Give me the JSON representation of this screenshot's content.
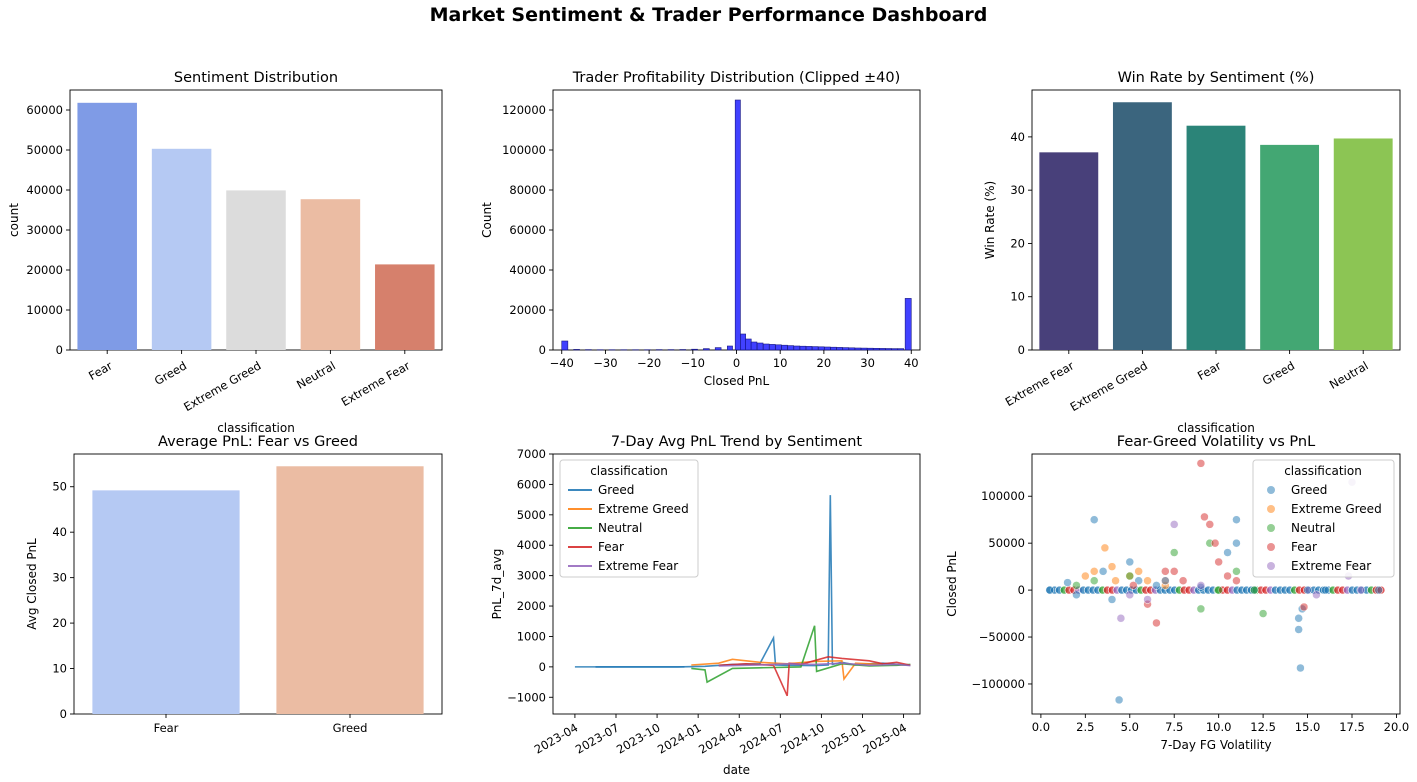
{
  "suptitle": "Market Sentiment & Trader Performance Dashboard",
  "colors": {
    "fear": "#7f9be6",
    "greed": "#b5c9f3",
    "extreme_greed": "#dcdcdc",
    "neutral": "#ebbca3",
    "extreme_fear": "#d6806c",
    "hist": "#2020ff",
    "viridis": [
      "#48407a",
      "#3b657e",
      "#2b8478",
      "#43a773",
      "#8cc554"
    ],
    "line_greed": "#1f77b4",
    "line_extreme_greed": "#ff7f0e",
    "line_neutral": "#2ca02c",
    "line_fear": "#d62728",
    "line_extreme_fear": "#9467bd"
  },
  "chart_data": [
    {
      "type": "bar",
      "title": "Sentiment Distribution",
      "xlabel": "classification",
      "ylabel": "count",
      "categories": [
        "Fear",
        "Greed",
        "Extreme Greed",
        "Neutral",
        "Extreme Fear"
      ],
      "values": [
        61800,
        50300,
        39900,
        37700,
        21400
      ],
      "ylim": [
        0,
        65000
      ],
      "yticks": [
        "0",
        "10000",
        "20000",
        "30000",
        "40000",
        "50000",
        "60000"
      ],
      "ytick_values": [
        0,
        10000,
        20000,
        30000,
        40000,
        50000,
        60000
      ],
      "grid": false,
      "xtick_rotation": 30
    },
    {
      "type": "bar",
      "title": "Trader Profitability Distribution (Clipped ±40)",
      "xlabel": "Closed PnL",
      "ylabel": "Count",
      "bin_centers": [
        -39.3,
        -36.6,
        -33.9,
        -31.2,
        -28.5,
        -25.8,
        -23.1,
        -20.4,
        -17.7,
        -15.0,
        -12.3,
        -9.6,
        -6.9,
        -4.2,
        -1.5,
        0.3,
        1.5,
        2.7,
        4.0,
        5.4,
        6.8,
        8.2,
        9.6,
        11.0,
        12.4,
        13.8,
        15.2,
        16.6,
        18.0,
        19.4,
        20.8,
        22.2,
        23.6,
        25.0,
        26.4,
        27.8,
        29.2,
        30.6,
        32.0,
        33.4,
        34.8,
        36.2,
        37.6,
        39.3
      ],
      "values": [
        4500,
        300,
        200,
        150,
        150,
        150,
        150,
        150,
        200,
        200,
        250,
        400,
        700,
        1200,
        2000,
        125000,
        8000,
        5500,
        4000,
        3500,
        3000,
        2800,
        2600,
        2400,
        2200,
        2000,
        1900,
        1800,
        1700,
        1600,
        1500,
        1400,
        1300,
        1200,
        1100,
        1000,
        950,
        900,
        850,
        800,
        750,
        700,
        700,
        25800
      ],
      "xlim": [
        -42,
        42
      ],
      "ylim": [
        0,
        130000
      ],
      "xticks": [
        "−40",
        "−30",
        "−20",
        "−10",
        "0",
        "10",
        "20",
        "30",
        "40"
      ],
      "xtick_values": [
        -40,
        -30,
        -20,
        -10,
        0,
        10,
        20,
        30,
        40
      ],
      "yticks": [
        "0",
        "20000",
        "40000",
        "60000",
        "80000",
        "100000",
        "120000"
      ],
      "ytick_values": [
        0,
        20000,
        40000,
        60000,
        80000,
        100000,
        120000
      ],
      "grid": false
    },
    {
      "type": "bar",
      "title": "Win Rate by Sentiment (%)",
      "xlabel": "classification",
      "ylabel": "Win Rate (%)",
      "categories": [
        "Extreme Fear",
        "Extreme Greed",
        "Fear",
        "Greed",
        "Neutral"
      ],
      "values": [
        37.1,
        46.5,
        42.1,
        38.5,
        39.7
      ],
      "ylim": [
        0,
        48.8
      ],
      "yticks": [
        "0",
        "10",
        "20",
        "30",
        "40"
      ],
      "ytick_values": [
        0,
        10,
        20,
        30,
        40
      ],
      "grid": false,
      "xtick_rotation": 30
    },
    {
      "type": "bar",
      "title": "Average PnL: Fear vs Greed",
      "xlabel": "",
      "ylabel": "Avg Closed PnL",
      "categories": [
        "Fear",
        "Greed"
      ],
      "values": [
        49.2,
        54.5
      ],
      "ylim": [
        0,
        57.2
      ],
      "yticks": [
        "0",
        "10",
        "20",
        "30",
        "40",
        "50"
      ],
      "ytick_values": [
        0,
        10,
        20,
        30,
        40,
        50
      ],
      "grid": false
    },
    {
      "type": "line",
      "title": "7-Day Avg PnL Trend by Sentiment",
      "xlabel": "date",
      "ylabel": "PnL_7d_avg",
      "x_ticks": [
        "2023-04",
        "2023-07",
        "2023-10",
        "2024-01",
        "2024-04",
        "2024-07",
        "2024-10",
        "2025-01",
        "2025-04"
      ],
      "ylim": [
        -1550,
        7000
      ],
      "yticks": [
        "−1000",
        "0",
        "1000",
        "2000",
        "3000",
        "4000",
        "5000",
        "6000",
        "7000"
      ],
      "ytick_values": [
        -1000,
        0,
        1000,
        2000,
        3000,
        4000,
        5000,
        6000,
        7000
      ],
      "legend_title": "classification",
      "legend_position": "upper left",
      "series": [
        {
          "name": "Greed",
          "x": [
            "2023-05",
            "2023-08",
            "2023-11",
            "2024-01",
            "2024-03",
            "2024-05",
            "2024-06",
            "2024-06",
            "2024-07",
            "2024-09",
            "2024-10",
            "2024-10",
            "2024-10",
            "2024-11",
            "2024-12",
            "2025-01",
            "2025-02",
            "2025-03",
            "2025-04"
          ],
          "y": [
            0,
            0,
            0,
            20,
            80,
            100,
            950,
            60,
            50,
            40,
            60,
            5650,
            80,
            150,
            60,
            100,
            120,
            80,
            50
          ]
        },
        {
          "name": "Extreme Greed",
          "x": [
            "2023-12",
            "2024-02",
            "2024-03",
            "2024-05",
            "2024-07",
            "2024-09",
            "2024-11",
            "2024-11",
            "2024-12",
            "2025-02"
          ],
          "y": [
            60,
            120,
            250,
            150,
            100,
            180,
            200,
            -400,
            120,
            80
          ]
        },
        {
          "name": "Neutral",
          "x": [
            "2023-12",
            "2024-01",
            "2024-01",
            "2024-03",
            "2024-05",
            "2024-08",
            "2024-09",
            "2024-09",
            "2024-11",
            "2025-01",
            "2025-03",
            "2025-04"
          ],
          "y": [
            -50,
            -100,
            -500,
            -50,
            -30,
            0,
            1350,
            -150,
            100,
            30,
            50,
            80
          ]
        },
        {
          "name": "Fear",
          "x": [
            "2024-02",
            "2024-04",
            "2024-06",
            "2024-07",
            "2024-07",
            "2024-08",
            "2024-10",
            "2024-11",
            "2025-01",
            "2025-02",
            "2025-03",
            "2025-04"
          ],
          "y": [
            50,
            100,
            50,
            -950,
            120,
            80,
            330,
            280,
            200,
            100,
            150,
            50
          ]
        },
        {
          "name": "Extreme Fear",
          "x": [
            "2024-02",
            "2024-05",
            "2024-07",
            "2024-09",
            "2024-11",
            "2025-01",
            "2025-03",
            "2025-04"
          ],
          "y": [
            30,
            60,
            100,
            80,
            120,
            50,
            80,
            40
          ]
        }
      ],
      "grid": false
    },
    {
      "type": "scatter",
      "title": "Fear-Greed Volatility vs PnL",
      "xlabel": "7-Day FG Volatility",
      "ylabel": "Closed PnL",
      "xlim": [
        -0.5,
        20.2
      ],
      "ylim": [
        -132000,
        145000
      ],
      "xticks": [
        "0.0",
        "2.5",
        "5.0",
        "7.5",
        "10.0",
        "12.5",
        "15.0",
        "17.5",
        "20.0"
      ],
      "xtick_values": [
        0,
        2.5,
        5,
        7.5,
        10,
        12.5,
        15,
        17.5,
        20
      ],
      "yticks": [
        "−100000",
        "−50000",
        "0",
        "50000",
        "100000"
      ],
      "ytick_values": [
        -100000,
        -50000,
        0,
        50000,
        100000
      ],
      "legend_title": "classification",
      "legend_position": "upper right",
      "series": [
        {
          "name": "Greed",
          "x": [
            0.5,
            1.5,
            2.0,
            3.0,
            3.5,
            4.0,
            4.4,
            5.0,
            5.5,
            6.5,
            9.0,
            10.5,
            11.0,
            11.0,
            12.0,
            14.5,
            14.5,
            14.6,
            14.7,
            15.0,
            16.0,
            19.0
          ],
          "y": [
            0,
            8000,
            -5000,
            75000,
            20000,
            -10000,
            -117000,
            30000,
            10000,
            5000,
            3000,
            40000,
            75000,
            50000,
            0,
            -30000,
            -42000,
            -83000,
            -20000,
            0,
            0,
            0
          ]
        },
        {
          "name": "Extreme Greed",
          "x": [
            2.5,
            3.0,
            3.6,
            4.0,
            4.2,
            5.0,
            5.5,
            6.0,
            7.0
          ],
          "y": [
            15000,
            20000,
            45000,
            25000,
            10000,
            15000,
            20000,
            10000,
            5000
          ]
        },
        {
          "name": "Neutral",
          "x": [
            2.0,
            3.0,
            5.0,
            7.0,
            7.5,
            9.0,
            9.5,
            10.0,
            11.0,
            12.0,
            12.5
          ],
          "y": [
            5000,
            10000,
            15000,
            10000,
            40000,
            -20000,
            50000,
            0,
            20000,
            0,
            -25000
          ]
        },
        {
          "name": "Fear",
          "x": [
            5.2,
            6.0,
            6.5,
            7.0,
            7.5,
            8.0,
            9.0,
            9.2,
            9.5,
            9.8,
            10.0,
            10.5,
            11.0,
            14.8
          ],
          "y": [
            5000,
            -15000,
            -35000,
            20000,
            20000,
            10000,
            135000,
            78000,
            70000,
            50000,
            30000,
            15000,
            10000,
            -18000
          ]
        },
        {
          "name": "Extreme Fear",
          "x": [
            4.5,
            5.0,
            6.0,
            7.0,
            7.5,
            9.0,
            15.5,
            17.3,
            17.5,
            18.0
          ],
          "y": [
            -30000,
            -5000,
            -10000,
            10000,
            70000,
            5000,
            -5000,
            15000,
            115000,
            0
          ]
        }
      ],
      "grid": false
    }
  ]
}
